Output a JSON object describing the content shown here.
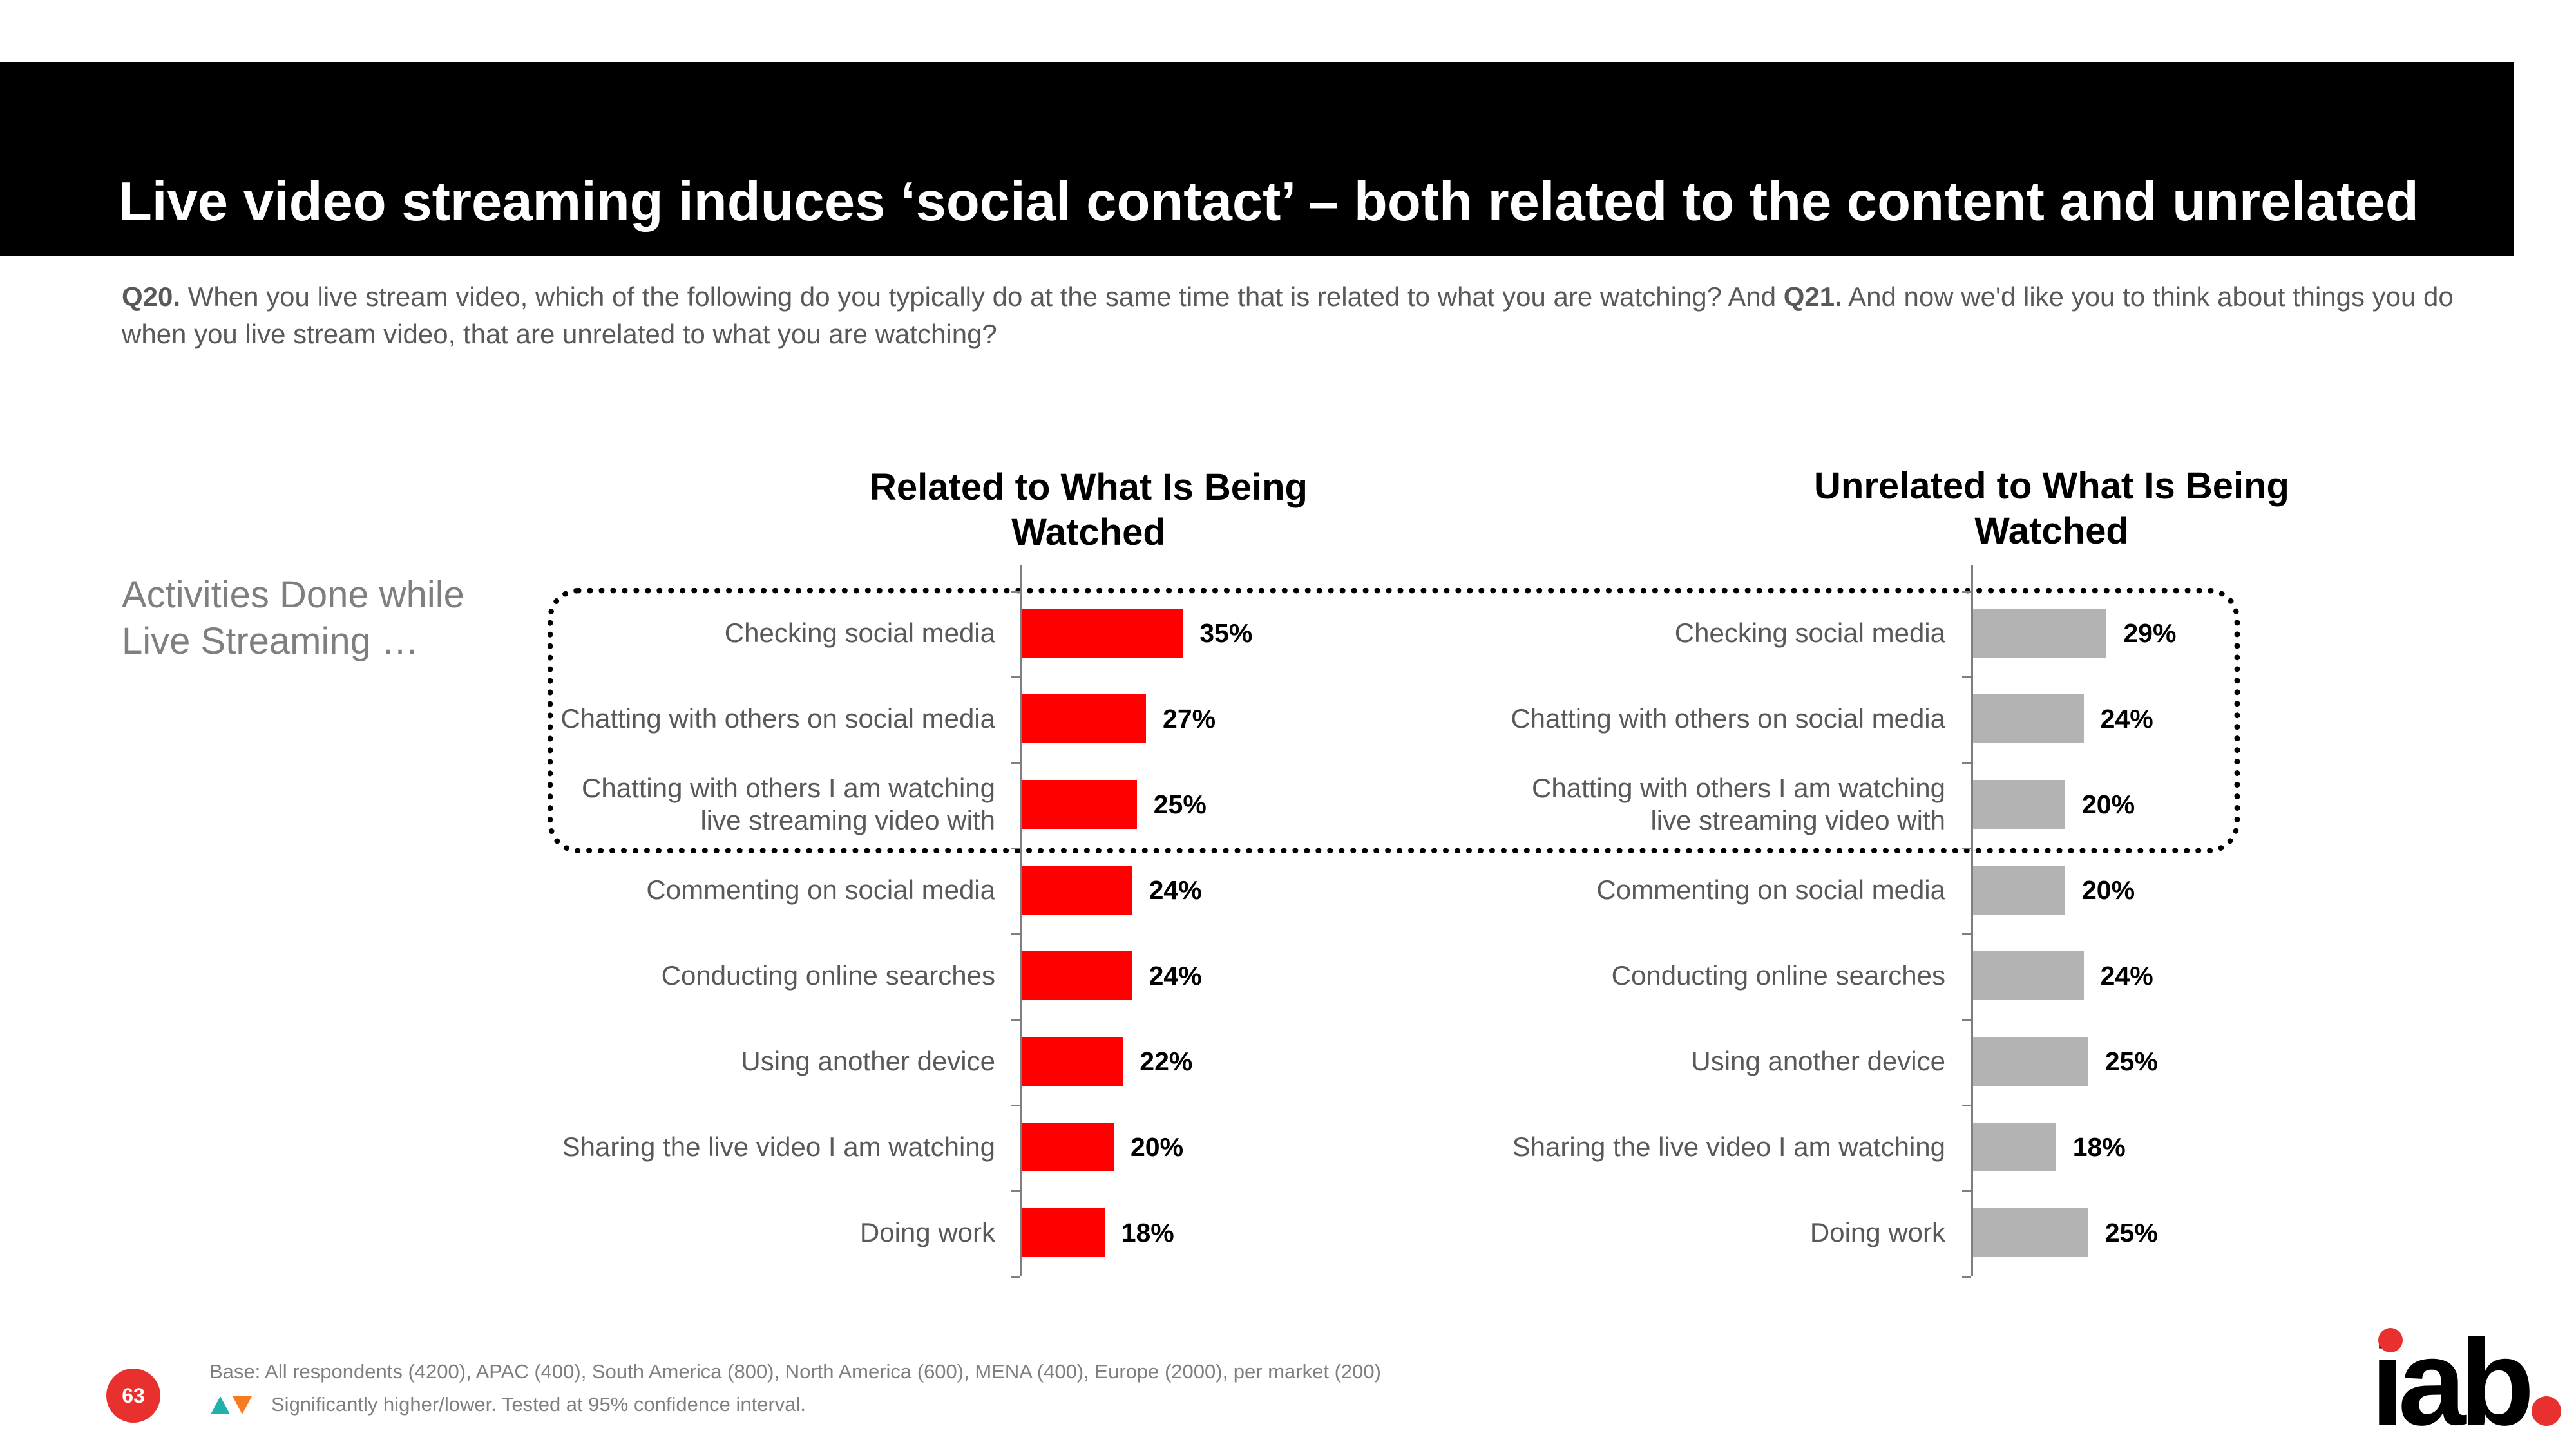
{
  "slide": {
    "title": "Live video streaming induces ‘social contact’ – both related to the content and unrelated",
    "question_q20_label": "Q20.",
    "question_q20_text": " When you live stream video, which of the following do you typically do at the same time that is related to what you are watching? And ",
    "question_q21_label": "Q21.",
    "question_q21_text": " And now we'd like you to think about things you do when you live stream video, that are unrelated to what you are watching?",
    "activities_label": "Activities Done while Live Streaming …",
    "base_note": "Base: All respondents (4200), APAC (400), South America (800), North America (600), MENA (400), Europe (2000), per market (200)",
    "significance_note": "Significantly higher/lower. Tested at 95% confidence interval.",
    "page_number": "63",
    "logo_text": "iab"
  },
  "colors": {
    "related_bar": "#ff0000",
    "unrelated_bar": "#b3b3b3",
    "up_triangle": "#20b2aa",
    "down_triangle": "#f57c21",
    "accent_red": "#e8312f"
  },
  "chart_data": [
    {
      "type": "bar",
      "orientation": "horizontal",
      "title": "Related to What Is Being Watched",
      "categories": [
        "Checking social media",
        "Chatting with others on social media",
        "Chatting with others I am watching live streaming video with",
        "Commenting on social media",
        "Conducting online searches",
        "Using another device",
        "Sharing the live video I am watching",
        "Doing work"
      ],
      "values": [
        35,
        27,
        25,
        24,
        24,
        22,
        20,
        18
      ],
      "value_labels": [
        "35%",
        "27%",
        "25%",
        "24%",
        "24%",
        "22%",
        "20%",
        "18%"
      ],
      "unit": "%",
      "xlim": [
        0,
        100
      ],
      "grid": false,
      "highlighted_categories": 3
    },
    {
      "type": "bar",
      "orientation": "horizontal",
      "title": "Unrelated to What Is Being Watched",
      "categories": [
        "Checking social media",
        "Chatting with others on social media",
        "Chatting with others I am watching live streaming video with",
        "Commenting on social media",
        "Conducting online searches",
        "Using another device",
        "Sharing the live video I am watching",
        "Doing work"
      ],
      "values": [
        29,
        24,
        20,
        20,
        24,
        25,
        18,
        25
      ],
      "value_labels": [
        "29%",
        "24%",
        "20%",
        "20%",
        "24%",
        "25%",
        "18%",
        "25%"
      ],
      "unit": "%",
      "xlim": [
        0,
        100
      ],
      "grid": false,
      "highlighted_categories": 3
    }
  ]
}
